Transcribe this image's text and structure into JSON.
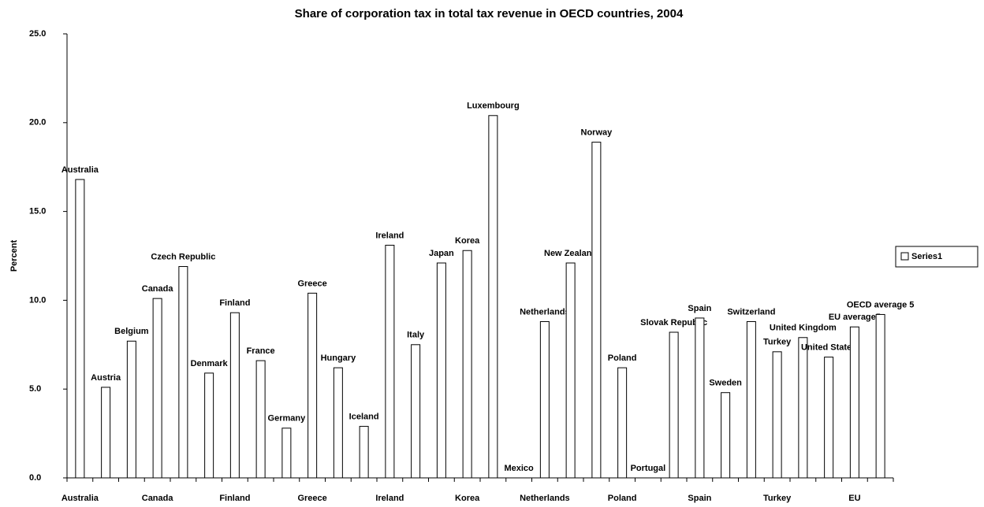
{
  "chart_data": {
    "type": "bar",
    "title": "Share of corporation tax in total tax revenue in OECD countries, 2004",
    "ylabel": "Percent",
    "categories": [
      "Australia",
      null,
      null,
      "Canada",
      null,
      null,
      "Finland",
      null,
      null,
      "Greece",
      null,
      null,
      "Ireland",
      null,
      null,
      "Korea",
      null,
      null,
      "Netherlands",
      null,
      null,
      "Poland",
      null,
      null,
      "Spain",
      null,
      null,
      "Turkey",
      null,
      null,
      "EU",
      null
    ],
    "bar_labels": [
      "Australia",
      "Austria",
      "Belgium",
      "Canada",
      "Czech Republic",
      "Denmark",
      "Finland",
      "France",
      "Germany",
      "Greece",
      "Hungary",
      "Iceland",
      "Ireland",
      "Italy",
      "Japan",
      "Korea",
      "Luxembourg",
      "Mexico",
      "Netherlands",
      "New Zealand",
      "Norway",
      "Poland",
      "Portugal",
      "Slovak Republic",
      "Spain",
      "Sweden",
      "Switzerland",
      "Turkey",
      "United Kingdom",
      "United States",
      "EU average5",
      "OECD average 5"
    ],
    "series": [
      {
        "name": "Series1",
        "color": "#ffffff",
        "values": [
          16.8,
          5.1,
          7.7,
          10.1,
          11.9,
          5.9,
          9.3,
          6.6,
          2.8,
          10.4,
          6.2,
          2.9,
          13.1,
          7.5,
          12.1,
          12.8,
          20.4,
          0,
          8.8,
          12.1,
          18.9,
          6.2,
          0,
          8.2,
          9.0,
          4.8,
          8.8,
          7.1,
          7.9,
          6.8,
          8.5,
          9.2
        ]
      }
    ],
    "ylim": [
      0,
      25
    ],
    "yticks": [
      {
        "value": 0,
        "label": "0.0"
      },
      {
        "value": 5,
        "label": "5.0"
      },
      {
        "value": 10,
        "label": "10.0"
      },
      {
        "value": 15,
        "label": "15.0"
      },
      {
        "value": 20,
        "label": "20.0"
      },
      {
        "value": 25,
        "label": "25.0"
      }
    ],
    "legend": "right"
  }
}
